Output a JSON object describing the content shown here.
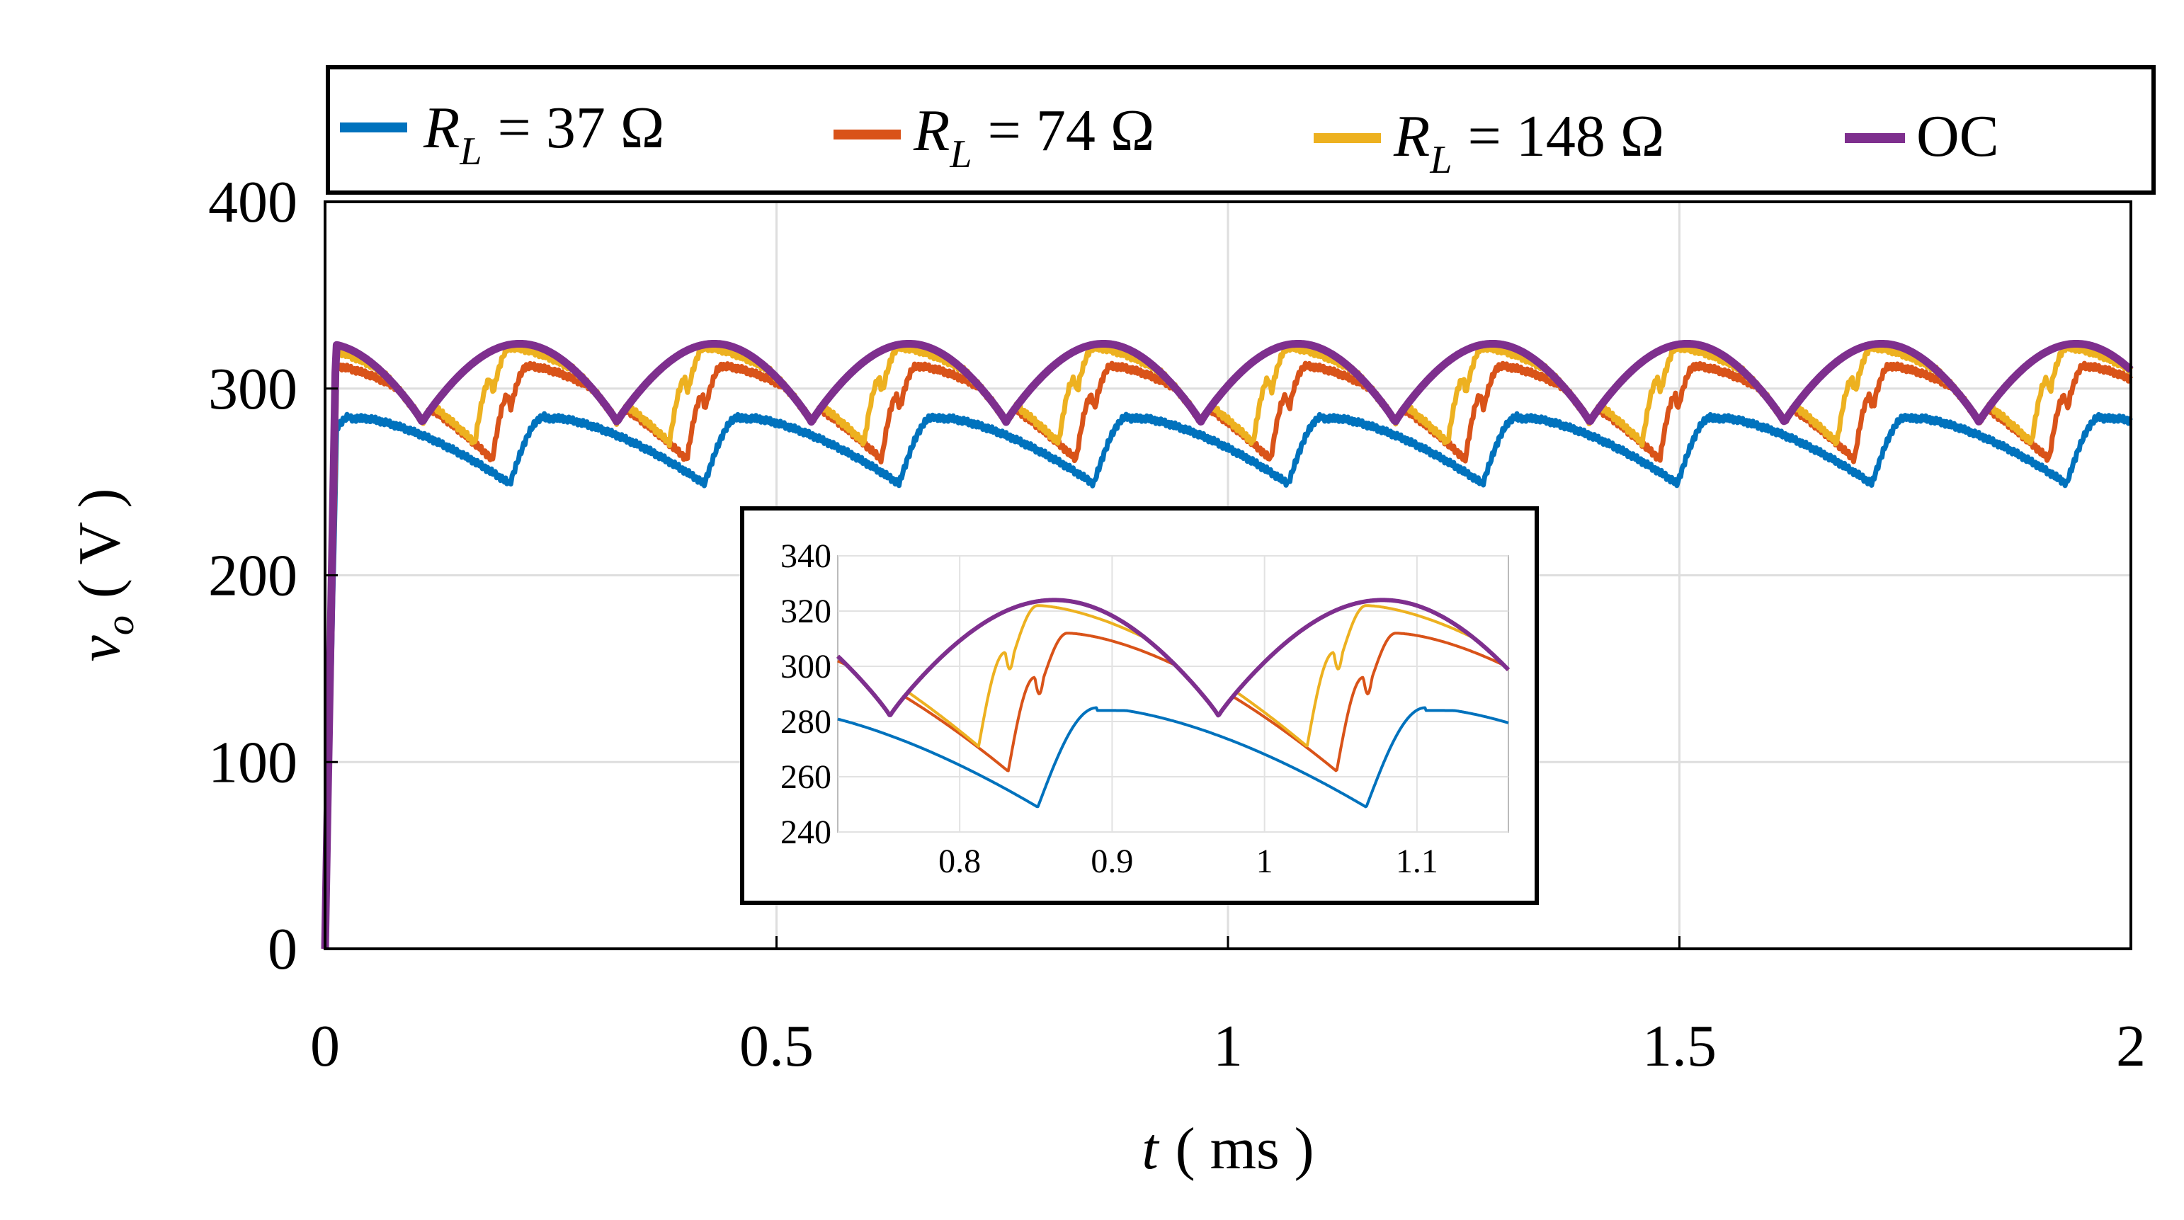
{
  "chart_data": {
    "type": "line",
    "title": "",
    "xlabel": "t ( ms )",
    "ylabel": "vo ( V )",
    "xlabel_var": "t",
    "xlabel_unit": "( ms )",
    "ylabel_var": "v",
    "ylabel_sub": "o",
    "ylabel_unit": "( V )",
    "xlim": [
      0,
      2
    ],
    "ylim": [
      0,
      400
    ],
    "xticks": [
      0,
      0.5,
      1,
      1.5,
      2
    ],
    "xtick_labels": [
      "0",
      "0.5",
      "1",
      "1.5",
      "2"
    ],
    "yticks": [
      0,
      100,
      200,
      300,
      400
    ],
    "ytick_labels": [
      "0",
      "100",
      "200",
      "300",
      "400"
    ],
    "grid": true,
    "legend_position": "top, outside",
    "series": [
      {
        "key": "rl37",
        "name": "R_L = 37 Ω",
        "legend_var": "R",
        "legend_sub": "L",
        "legend_rest": "= 37 Ω",
        "color": "#0072BD",
        "min_v": 249,
        "settle_v": 284,
        "peak_v": 285,
        "dip_phase": 0.45
      },
      {
        "key": "rl74",
        "name": "R_L = 74 Ω",
        "legend_var": "R",
        "legend_sub": "L",
        "legend_rest": "= 74 Ω",
        "color": "#D95319",
        "min_v": 262,
        "shoulder_v": 296,
        "peak_v": 312,
        "dip_phase": 0.36
      },
      {
        "key": "rl148",
        "name": "R_L = 148 Ω",
        "legend_var": "R",
        "legend_sub": "L",
        "legend_rest": "= 148 Ω",
        "color": "#EDB120",
        "min_v": 271,
        "shoulder_v": 305,
        "peak_v": 322,
        "dip_phase": 0.27
      },
      {
        "key": "oc",
        "name": "OC",
        "legend_var": "",
        "legend_sub": "",
        "legend_rest": "OC",
        "color": "#7E2F8E",
        "min_v": 282,
        "peak_v": 324,
        "dip_phase": 0.0
      }
    ],
    "waveform": {
      "period_ms": 0.2155,
      "oc_first_peak_ms": 0.0,
      "oc_min_v": 282,
      "oc_peak_v": 324
    },
    "inset": {
      "xlim": [
        0.72,
        1.16
      ],
      "ylim": [
        240,
        340
      ],
      "xticks": [
        0.8,
        0.9,
        1,
        1.1
      ],
      "xtick_labels": [
        "0.8",
        "0.9",
        "1",
        "1.1"
      ],
      "yticks": [
        240,
        260,
        280,
        300,
        320,
        340
      ],
      "ytick_labels": [
        "240",
        "260",
        "280",
        "300",
        "320",
        "340"
      ],
      "grid": true
    }
  }
}
